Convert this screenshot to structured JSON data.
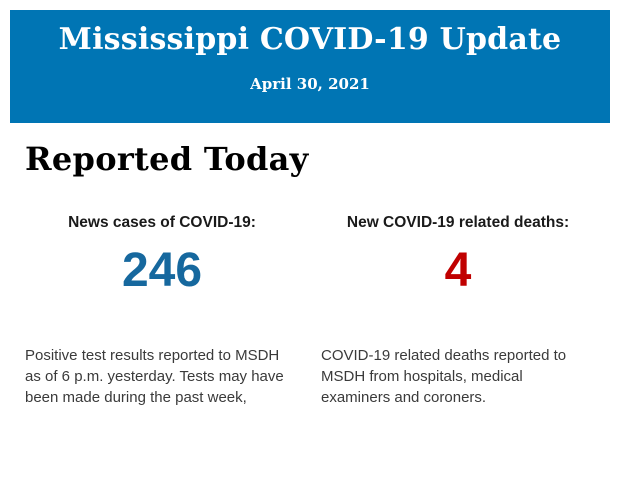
{
  "header": {
    "title": "Mississippi COVID-19 Update",
    "date": "April 30, 2021",
    "background_color": "#0075b4",
    "text_color": "#ffffff"
  },
  "section": {
    "heading": "Reported Today"
  },
  "stats": {
    "cases": {
      "label": "News cases of COVID-19:",
      "value": "246",
      "value_color": "#16689e",
      "description": "Positive test results reported to MSDH as of 6 p.m. yesterday. Tests may have been made during the past week,"
    },
    "deaths": {
      "label": "New COVID-19 related deaths:",
      "value": "4",
      "value_color": "#c00000",
      "description": "COVID-19 related deaths reported to MSDH from hospitals, medical examiners and coroners."
    }
  }
}
